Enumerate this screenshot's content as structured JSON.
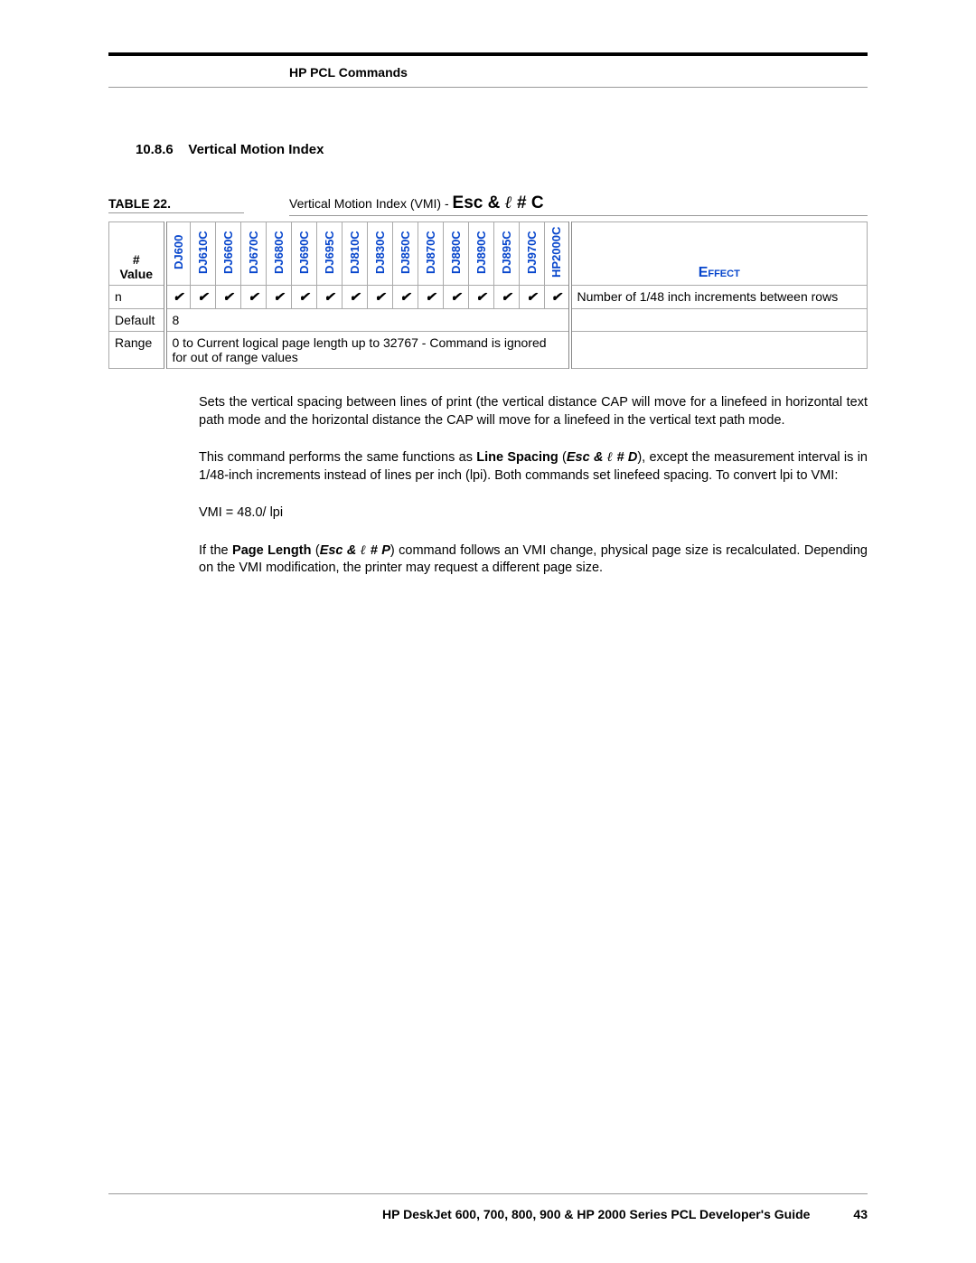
{
  "header": {
    "doc_section": "HP PCL Commands"
  },
  "section": {
    "number": "10.8.6",
    "title": "Vertical Motion Index"
  },
  "table": {
    "label": "TABLE 22.",
    "caption_prefix": "Vertical Motion Index (VMI) - ",
    "caption_cmd_a": "Esc & ",
    "caption_cmd_l": "ℓ",
    "caption_cmd_b": " # C",
    "value_header_a": "#",
    "value_header_b": "Value",
    "effect_header": "Effect",
    "printers": [
      "DJ600",
      "DJ610C",
      "DJ660C",
      "DJ670C",
      "DJ680C",
      "DJ690C",
      "DJ695C",
      "DJ810C",
      "DJ830C",
      "DJ850C",
      "DJ870C",
      "DJ880C",
      "DJ890C",
      "DJ895C",
      "DJ970C",
      "HP2000C"
    ],
    "rows": {
      "n": {
        "label": "n",
        "effect": "Number of 1/48 inch increments between rows"
      },
      "default": {
        "label": "Default",
        "text": "8"
      },
      "range": {
        "label": "Range",
        "text": "0 to Current logical page length up to 32767 - Command is ignored for out of range values"
      }
    }
  },
  "paragraphs": {
    "p1": "Sets the vertical spacing between lines of print (the vertical distance CAP will move for a linefeed in horizontal text path mode and the horizontal distance the CAP will move for a linefeed in the vertical text path mode.",
    "p2a": "This command performs the same functions as ",
    "p2b": "Line Spacing",
    "p2c": " (",
    "p2d": "Esc & ",
    "p2l": "ℓ",
    "p2e": " # D",
    "p2f": "), except the measurement interval is in 1/48-inch increments instead of lines per inch (lpi). Both commands set linefeed spacing. To convert lpi to VMI:",
    "p3": "VMI = 48.0/ lpi",
    "p4a": "If the ",
    "p4b": "Page Length",
    "p4c": " (",
    "p4d": "Esc & ",
    "p4l": "ℓ",
    "p4e": " # P",
    "p4f": ") command follows an VMI change, physical page size is recalculated. Depending on the VMI modification, the printer may request a different page size."
  },
  "footer": {
    "title": "HP DeskJet 600, 700, 800, 900 & HP 2000 Series PCL Developer's Guide",
    "page": "43"
  },
  "colors": {
    "link": "#0645cc"
  }
}
